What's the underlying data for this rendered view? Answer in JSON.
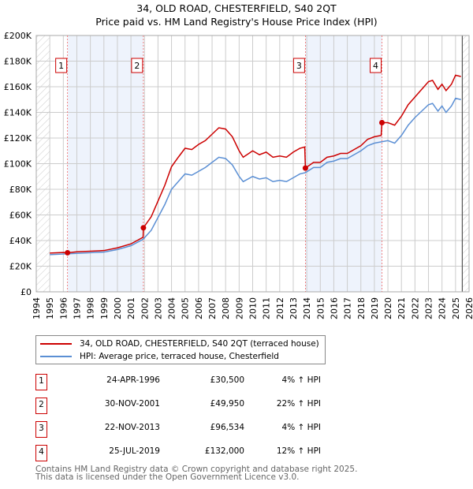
{
  "title": "34, OLD ROAD, CHESTERFIELD, S40 2QT",
  "subtitle": "Price paid vs. HM Land Registry's House Price Index (HPI)",
  "chart_data": {
    "type": "line",
    "xlim": [
      1994,
      2026
    ],
    "ylim": [
      0,
      200000
    ],
    "yticks": [
      {
        "v": 0,
        "l": "£0"
      },
      {
        "v": 20000,
        "l": "£20K"
      },
      {
        "v": 40000,
        "l": "£40K"
      },
      {
        "v": 60000,
        "l": "£60K"
      },
      {
        "v": 80000,
        "l": "£80K"
      },
      {
        "v": 100000,
        "l": "£100K"
      },
      {
        "v": 120000,
        "l": "£120K"
      },
      {
        "v": 140000,
        "l": "£140K"
      },
      {
        "v": 160000,
        "l": "£160K"
      },
      {
        "v": 180000,
        "l": "£180K"
      },
      {
        "v": 200000,
        "l": "£200K"
      }
    ],
    "xticks": [
      "1994",
      "1995",
      "1996",
      "1997",
      "1998",
      "1999",
      "2000",
      "2001",
      "2002",
      "2003",
      "2004",
      "2005",
      "2006",
      "2007",
      "2008",
      "2009",
      "2010",
      "2011",
      "2012",
      "2013",
      "2014",
      "2015",
      "2016",
      "2017",
      "2018",
      "2019",
      "2020",
      "2021",
      "2022",
      "2023",
      "2024",
      "2025",
      "2026"
    ],
    "data_range": [
      1995,
      2025.5
    ],
    "series": [
      {
        "name": "34, OLD ROAD, CHESTERFIELD, S40 2QT (terraced house)",
        "color": "#cc0000",
        "x": [
          1995,
          1996,
          1996.31,
          1997,
          1998,
          1999,
          2000,
          2001,
          2001.9,
          2001.92,
          2002.5,
          2003,
          2003.5,
          2004,
          2004.5,
          2005,
          2005.5,
          2006,
          2006.5,
          2007,
          2007.5,
          2008,
          2008.5,
          2009,
          2009.3,
          2010,
          2010.5,
          2011,
          2011.5,
          2012,
          2012.5,
          2013,
          2013.5,
          2013.85,
          2013.9,
          2014.5,
          2015,
          2015.5,
          2016,
          2016.5,
          2017,
          2017.5,
          2018,
          2018.5,
          2019,
          2019.5,
          2019.56,
          2020,
          2020.5,
          2021,
          2021.5,
          2022,
          2022.5,
          2023,
          2023.3,
          2023.7,
          2024,
          2024.3,
          2024.7,
          2025,
          2025.4
        ],
        "y": [
          30200,
          30700,
          30500,
          31200,
          31700,
          32200,
          34300,
          37400,
          42600,
          49950,
          58600,
          70800,
          83000,
          97600,
          105000,
          112000,
          111000,
          115000,
          118000,
          123000,
          128000,
          127000,
          121000,
          110000,
          105000,
          110000,
          107000,
          109000,
          105000,
          106000,
          105000,
          109000,
          112000,
          113000,
          96534,
          101000,
          101000,
          105000,
          106000,
          108000,
          108000,
          111000,
          114000,
          119000,
          121000,
          122000,
          132000,
          132000,
          130000,
          137000,
          146000,
          152000,
          158000,
          164000,
          165000,
          158000,
          162000,
          157000,
          162000,
          169000,
          168000
        ]
      },
      {
        "name": "HPI: Average price, terraced house, Chesterfield",
        "color": "#5b8fd4",
        "x": [
          1995,
          1996,
          1997,
          1998,
          1999,
          2000,
          2001,
          2001.9,
          2002.5,
          2003,
          2003.5,
          2004,
          2004.5,
          2005,
          2005.5,
          2006,
          2006.5,
          2007,
          2007.5,
          2008,
          2008.5,
          2009,
          2009.3,
          2010,
          2010.5,
          2011,
          2011.5,
          2012,
          2012.5,
          2013,
          2013.5,
          2013.9,
          2014.5,
          2015,
          2015.5,
          2016,
          2016.5,
          2017,
          2017.5,
          2018,
          2018.5,
          2019,
          2019.5,
          2020,
          2020.5,
          2021,
          2021.5,
          2022,
          2022.5,
          2023,
          2023.3,
          2023.7,
          2024,
          2024.3,
          2024.7,
          2025,
          2025.4
        ],
        "y": [
          29000,
          29500,
          30000,
          30500,
          31000,
          33000,
          36000,
          41000,
          48000,
          58000,
          68000,
          80000,
          86000,
          92000,
          91000,
          94000,
          97000,
          101000,
          105000,
          104000,
          99000,
          90000,
          86000,
          90000,
          88000,
          89000,
          86000,
          87000,
          86000,
          89000,
          92000,
          93000,
          97000,
          97000,
          101000,
          102000,
          104000,
          104000,
          107000,
          110000,
          114000,
          116000,
          117000,
          118000,
          116000,
          122000,
          130000,
          136000,
          141000,
          146000,
          147000,
          141000,
          145000,
          140000,
          145000,
          151000,
          150000
        ]
      }
    ],
    "sales": [
      {
        "n": "1",
        "x": 1996.31,
        "y": 30500,
        "date": "24-APR-1996",
        "price": "£30,500",
        "hpi": "4% ↑ HPI"
      },
      {
        "n": "2",
        "x": 2001.92,
        "y": 49950,
        "date": "30-NOV-2001",
        "price": "£49,950",
        "hpi": "22% ↑ HPI"
      },
      {
        "n": "3",
        "x": 2013.9,
        "y": 96534,
        "date": "22-NOV-2013",
        "price": "£96,534",
        "hpi": "4% ↑ HPI"
      },
      {
        "n": "4",
        "x": 2019.56,
        "y": 132000,
        "date": "25-JUL-2019",
        "price": "£132,000",
        "hpi": "12% ↑ HPI"
      }
    ]
  },
  "legend": {
    "red": "34, OLD ROAD, CHESTERFIELD, S40 2QT (terraced house)",
    "blue": "HPI: Average price, terraced house, Chesterfield"
  },
  "footer": {
    "line1": "Contains HM Land Registry data © Crown copyright and database right 2025.",
    "line2": "This data is licensed under the Open Government Licence v3.0."
  }
}
